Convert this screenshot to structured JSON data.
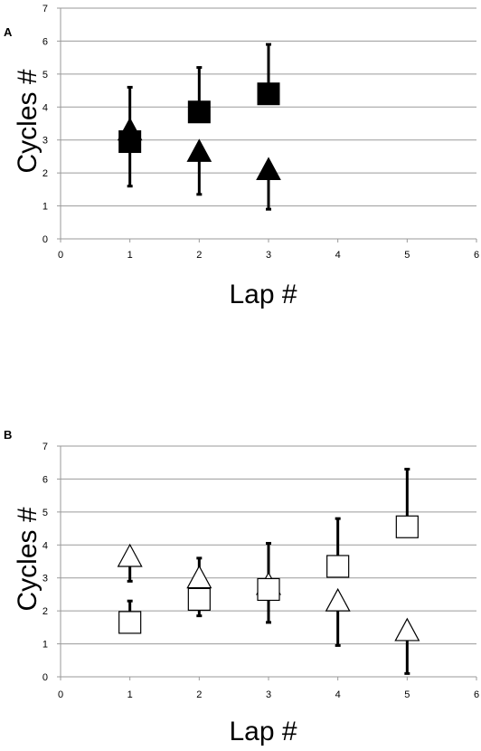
{
  "chart_data": [
    {
      "panel": "A",
      "type": "scatter",
      "xlabel": "Lap #",
      "ylabel": "Cycles #",
      "xlim": [
        0,
        6
      ],
      "ylim": [
        0,
        7
      ],
      "xticks": [
        "0",
        "1",
        "2",
        "3",
        "4",
        "5",
        "6"
      ],
      "yticks": [
        "0",
        "1",
        "2",
        "3",
        "4",
        "5",
        "6",
        "7"
      ],
      "grid": "horizontal",
      "series": [
        {
          "marker": "square",
          "fill": "filled",
          "points": [
            {
              "x": 1,
              "y": 2.95,
              "err_low": 1.6,
              "err_high": 4.6
            },
            {
              "x": 2,
              "y": 3.85,
              "err_low": null,
              "err_high": 5.2
            },
            {
              "x": 3,
              "y": 4.4,
              "err_low": null,
              "err_high": 5.9
            }
          ]
        },
        {
          "marker": "triangle",
          "fill": "filled",
          "points": [
            {
              "x": 1,
              "y": 3.25,
              "err_low": null,
              "err_high": null
            },
            {
              "x": 2,
              "y": 2.6,
              "err_low": 1.35,
              "err_high": null
            },
            {
              "x": 3,
              "y": 2.05,
              "err_low": 0.9,
              "err_high": null
            }
          ]
        }
      ]
    },
    {
      "panel": "B",
      "type": "scatter",
      "xlabel": "Lap #",
      "ylabel": "Cycles #",
      "xlim": [
        0,
        6
      ],
      "ylim": [
        0,
        7
      ],
      "xticks": [
        "0",
        "1",
        "2",
        "3",
        "4",
        "5",
        "6"
      ],
      "yticks": [
        "0",
        "1",
        "2",
        "3",
        "4",
        "5",
        "6",
        "7"
      ],
      "grid": "horizontal",
      "series": [
        {
          "marker": "square",
          "fill": "open",
          "points": [
            {
              "x": 1,
              "y": 1.65,
              "err_low": null,
              "err_high": 2.3
            },
            {
              "x": 2,
              "y": 2.35,
              "err_low": 1.85,
              "err_high": 3.6
            },
            {
              "x": 3,
              "y": 2.65,
              "err_low": 1.65,
              "err_high": 4.05
            },
            {
              "x": 4,
              "y": 3.35,
              "err_low": null,
              "err_high": 4.8
            },
            {
              "x": 5,
              "y": 4.55,
              "err_low": null,
              "err_high": 6.3
            }
          ]
        },
        {
          "marker": "triangle",
          "fill": "open",
          "points": [
            {
              "x": 1,
              "y": 3.6,
              "err_low": 2.9,
              "err_high": null
            },
            {
              "x": 2,
              "y": 2.95,
              "err_low": null,
              "err_high": null
            },
            {
              "x": 3,
              "y": 2.75,
              "err_low": null,
              "err_high": null
            },
            {
              "x": 4,
              "y": 2.25,
              "err_low": 0.95,
              "err_high": null
            },
            {
              "x": 5,
              "y": 1.35,
              "err_low": 0.1,
              "err_high": null
            }
          ]
        }
      ]
    }
  ],
  "colors": {
    "marker": "#000000",
    "open_fill": "#ffffff",
    "gridline": "#9a9a9a"
  }
}
